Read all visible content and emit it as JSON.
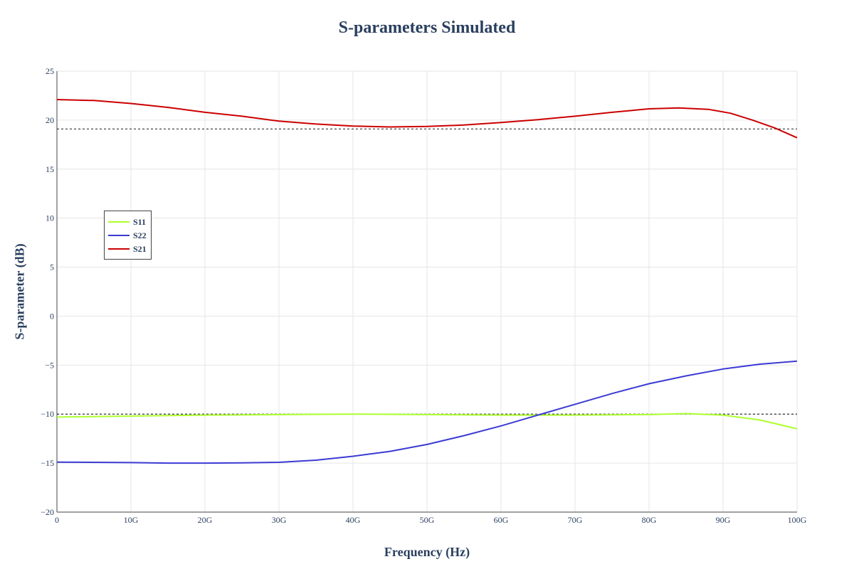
{
  "chart_data": {
    "type": "line",
    "title": "S-parameters Simulated",
    "xlabel": "Frequency (Hz)",
    "ylabel": "S-parameter (dB)",
    "xlim": [
      0,
      100000000000
    ],
    "ylim": [
      -20,
      25
    ],
    "x_ticks": [
      {
        "value": 0,
        "label": "0"
      },
      {
        "value": 10000000000,
        "label": "10G"
      },
      {
        "value": 20000000000,
        "label": "20G"
      },
      {
        "value": 30000000000,
        "label": "30G"
      },
      {
        "value": 40000000000,
        "label": "40G"
      },
      {
        "value": 50000000000,
        "label": "50G"
      },
      {
        "value": 60000000000,
        "label": "60G"
      },
      {
        "value": 70000000000,
        "label": "70G"
      },
      {
        "value": 80000000000,
        "label": "80G"
      },
      {
        "value": 90000000000,
        "label": "90G"
      },
      {
        "value": 100000000000,
        "label": "100G"
      }
    ],
    "y_ticks": [
      {
        "value": 25,
        "label": "25"
      },
      {
        "value": 20,
        "label": "20"
      },
      {
        "value": 15,
        "label": "15"
      },
      {
        "value": 10,
        "label": "10"
      },
      {
        "value": 5,
        "label": "5"
      },
      {
        "value": 0,
        "label": "0"
      },
      {
        "value": -5,
        "label": "−5"
      },
      {
        "value": -10,
        "label": "−10"
      },
      {
        "value": -15,
        "label": "−15"
      },
      {
        "value": -20,
        "label": "−20"
      }
    ],
    "grid": true,
    "legend_position": "left",
    "reference_lines": [
      {
        "y": 19.1,
        "style": "dotted",
        "color": "#333333"
      },
      {
        "y": -10,
        "style": "dotted",
        "color": "#333333"
      }
    ],
    "series": [
      {
        "name": "S11",
        "color": "#adff2f",
        "x": [
          0,
          10000000000,
          20000000000,
          30000000000,
          40000000000,
          50000000000,
          60000000000,
          70000000000,
          80000000000,
          85000000000,
          90000000000,
          95000000000,
          100000000000
        ],
        "y": [
          -10.3,
          -10.2,
          -10.1,
          -10.05,
          -10.0,
          -10.05,
          -10.1,
          -10.1,
          -10.05,
          -9.95,
          -10.1,
          -10.6,
          -11.5
        ]
      },
      {
        "name": "S22",
        "color": "#3b3bd4",
        "x": [
          0,
          10000000000,
          15000000000,
          20000000000,
          25000000000,
          30000000000,
          35000000000,
          40000000000,
          45000000000,
          50000000000,
          55000000000,
          60000000000,
          65000000000,
          70000000000,
          75000000000,
          80000000000,
          85000000000,
          90000000000,
          95000000000,
          100000000000
        ],
        "y": [
          -14.9,
          -14.95,
          -15.0,
          -15.0,
          -14.98,
          -14.92,
          -14.7,
          -14.3,
          -13.8,
          -13.1,
          -12.2,
          -11.2,
          -10.1,
          -9.0,
          -7.9,
          -6.9,
          -6.1,
          -5.4,
          -4.9,
          -4.6
        ]
      },
      {
        "name": "S21",
        "color": "#cc0000",
        "x": [
          0,
          5000000000,
          10000000000,
          15000000000,
          20000000000,
          25000000000,
          30000000000,
          35000000000,
          40000000000,
          45000000000,
          50000000000,
          55000000000,
          60000000000,
          65000000000,
          70000000000,
          75000000000,
          80000000000,
          84000000000,
          88000000000,
          91000000000,
          94000000000,
          97000000000,
          100000000000
        ],
        "y": [
          22.1,
          22.0,
          21.7,
          21.3,
          20.8,
          20.4,
          19.9,
          19.6,
          19.4,
          19.3,
          19.35,
          19.5,
          19.75,
          20.05,
          20.4,
          20.8,
          21.15,
          21.25,
          21.1,
          20.7,
          20.0,
          19.2,
          18.2
        ]
      }
    ]
  }
}
